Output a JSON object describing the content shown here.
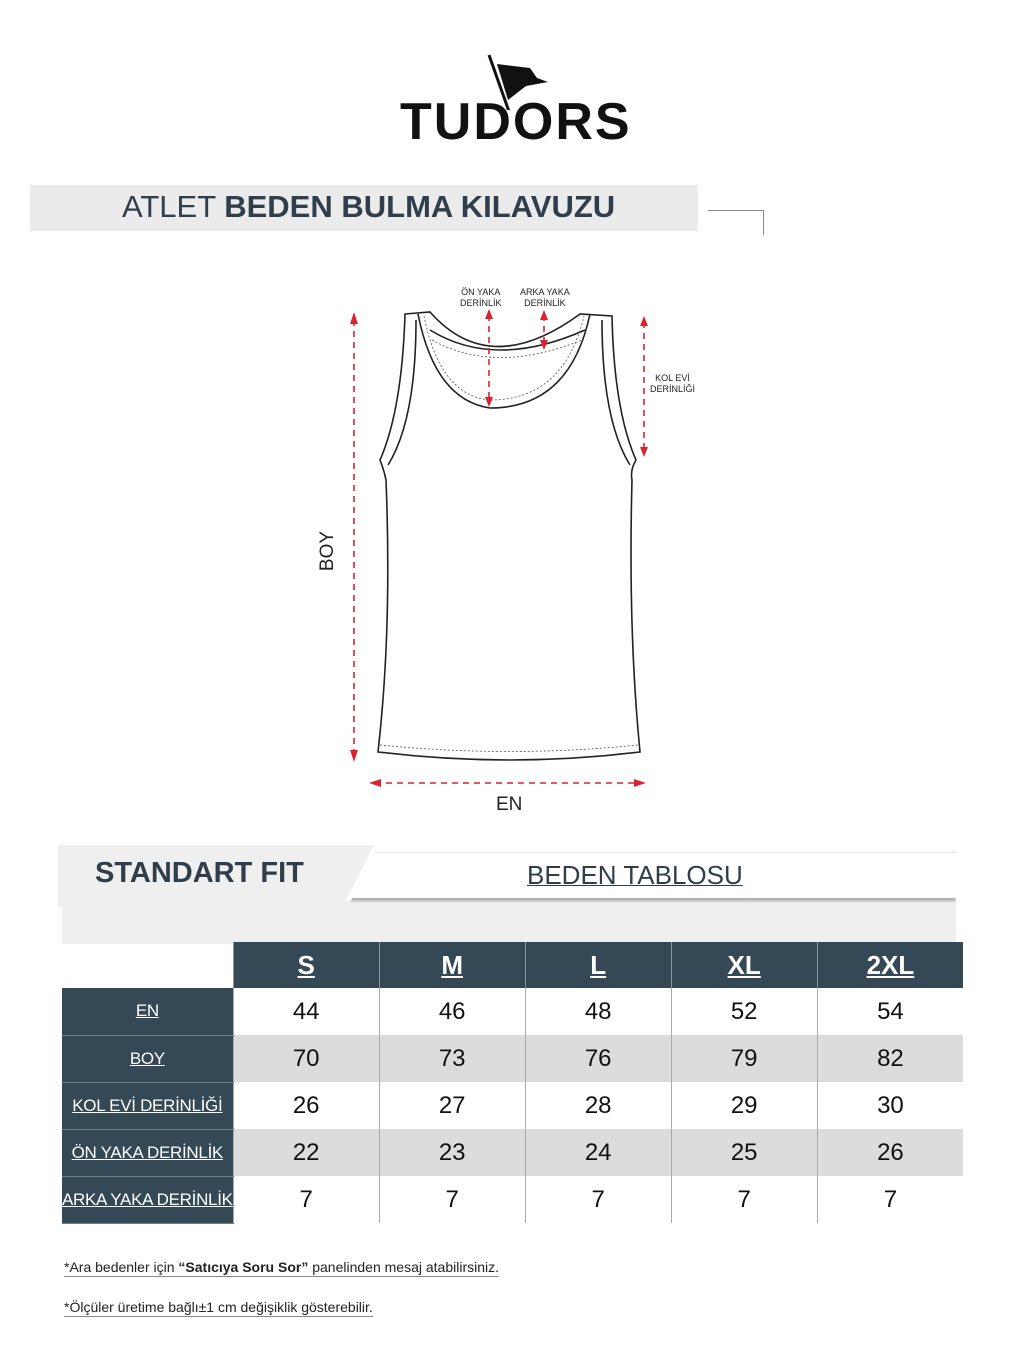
{
  "brand": {
    "name": "TUDORS"
  },
  "header": {
    "title_light": "ATLET",
    "title_bold": "BEDEN BULMA KILAVUZU"
  },
  "diagram": {
    "labels": {
      "on_yaka": [
        "ÖN YAKA",
        "DERİNLİK"
      ],
      "arka_yaka": [
        "ARKA YAKA",
        "DERİNLİK"
      ],
      "kol_evi": [
        "KOL EVİ",
        "DERİNLİĞİ"
      ],
      "boy": "BOY",
      "en": "EN"
    },
    "arrow_color": "#d9242f"
  },
  "size_table": {
    "fit_label": "STANDART FIT",
    "table_title": "BEDEN TABLOSU",
    "header_color": "#344955",
    "sizes": [
      "S",
      "M",
      "L",
      "XL",
      "2XL"
    ],
    "rows": [
      {
        "label": "EN",
        "values": [
          "44",
          "46",
          "48",
          "52",
          "54"
        ]
      },
      {
        "label": "BOY",
        "values": [
          "70",
          "73",
          "76",
          "79",
          "82"
        ]
      },
      {
        "label": "KOL EVİ DERİNLİĞİ",
        "values": [
          "26",
          "27",
          "28",
          "29",
          "30"
        ]
      },
      {
        "label": "ÖN YAKA DERİNLİK",
        "values": [
          "22",
          "23",
          "24",
          "25",
          "26"
        ]
      },
      {
        "label": "ARKA YAKA DERİNLİK",
        "values": [
          "7",
          "7",
          "7",
          "7",
          "7"
        ]
      }
    ]
  },
  "notes": {
    "note1_pre": "*Ara bedenler için ",
    "note1_bold": "“Satıcıya Soru Sor”",
    "note1_post": " panelinden mesaj atabilirsiniz.",
    "note2": "*Ölçüler üretime bağlı±1 cm değişiklik gösterebilir."
  }
}
